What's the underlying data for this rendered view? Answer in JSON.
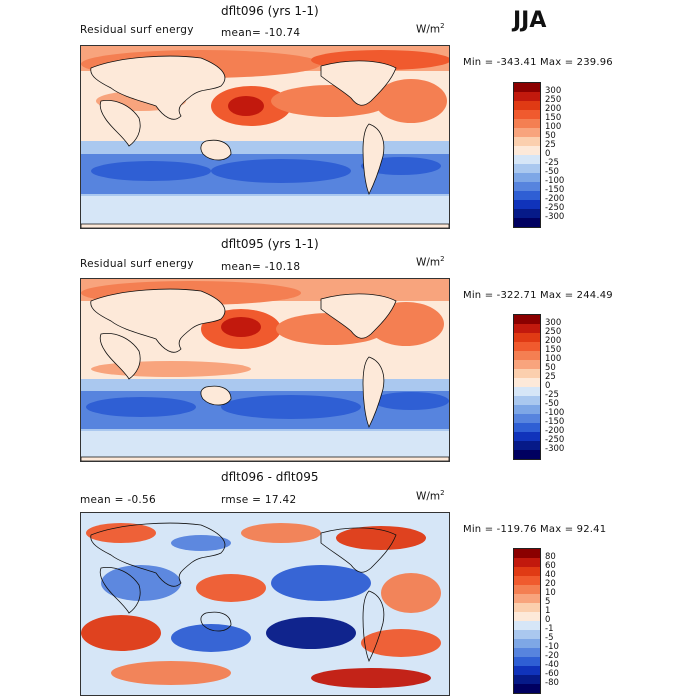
{
  "season": "JJA",
  "panels": [
    {
      "title": "dflt096 (yrs 1-1)",
      "label_left": "Residual surf energy",
      "label_mid": "mean= -10.74",
      "units": "W/m",
      "units_sup": "2",
      "minmax": "Min = -343.41 Max = 239.96",
      "colorbar": {
        "labels": [
          "300",
          "250",
          "200",
          "150",
          "100",
          "50",
          "25",
          "0",
          "-25",
          "-50",
          "-100",
          "-150",
          "-200",
          "-250",
          "-300"
        ],
        "colors": [
          "#8b0000",
          "#c2190d",
          "#e03a14",
          "#f05a2e",
          "#f47f52",
          "#f8a47d",
          "#fbcfae",
          "#fde9d9",
          "#d6e6f7",
          "#aac8ef",
          "#7ea7e6",
          "#5784de",
          "#2f5fd4",
          "#1033bb",
          "#061a88",
          "#000060"
        ]
      }
    },
    {
      "title": "dflt095 (yrs 1-1)",
      "label_left": "Residual surf energy",
      "label_mid": "mean= -10.18",
      "units": "W/m",
      "units_sup": "2",
      "minmax": "Min = -322.71 Max = 244.49",
      "colorbar": {
        "labels": [
          "300",
          "250",
          "200",
          "150",
          "100",
          "50",
          "25",
          "0",
          "-25",
          "-50",
          "-100",
          "-150",
          "-200",
          "-250",
          "-300"
        ],
        "colors": [
          "#8b0000",
          "#c2190d",
          "#e03a14",
          "#f05a2e",
          "#f47f52",
          "#f8a47d",
          "#fbcfae",
          "#fde9d9",
          "#d6e6f7",
          "#aac8ef",
          "#7ea7e6",
          "#5784de",
          "#2f5fd4",
          "#1033bb",
          "#061a88",
          "#000060"
        ]
      }
    },
    {
      "title": "dflt096 - dflt095",
      "label_left": "mean = -0.56",
      "label_mid": "rmse = 17.42",
      "units": "W/m",
      "units_sup": "2",
      "minmax": "Min = -119.76 Max = 92.41",
      "colorbar": {
        "labels": [
          "80",
          "60",
          "40",
          "20",
          "10",
          "5",
          "1",
          "0",
          "-1",
          "-5",
          "-10",
          "-20",
          "-40",
          "-60",
          "-80"
        ],
        "colors": [
          "#8b0000",
          "#c2190d",
          "#e03a14",
          "#f05a2e",
          "#f47f52",
          "#f8a47d",
          "#fbcfae",
          "#fde9d9",
          "#d6e6f7",
          "#aac8ef",
          "#7ea7e6",
          "#5784de",
          "#2f5fd4",
          "#1033bb",
          "#061a88",
          "#000060"
        ]
      }
    }
  ]
}
